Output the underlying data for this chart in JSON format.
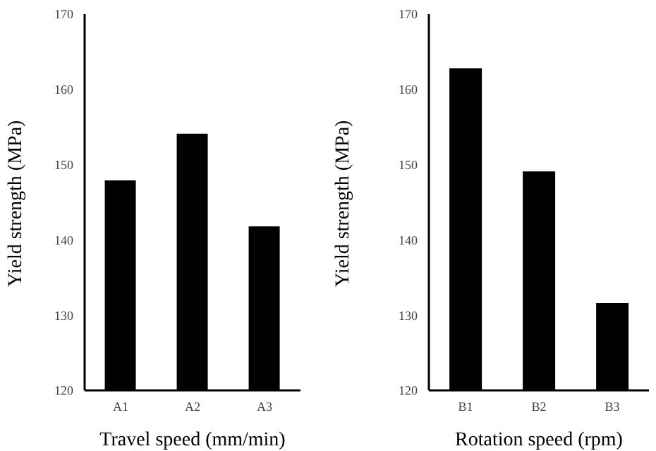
{
  "chart_data": [
    {
      "type": "bar",
      "xlabel": "Travel speed (mm/min)",
      "ylabel": "Yield strength (MPa)",
      "categories": [
        "A1",
        "A2",
        "A3"
      ],
      "values": [
        147.9,
        154.1,
        141.8
      ],
      "color": "#000000",
      "ylim": [
        120,
        170
      ],
      "yticks": [
        120,
        130,
        140,
        150,
        160,
        170
      ],
      "grid": false,
      "legend": false
    },
    {
      "type": "bar",
      "xlabel": "Rotation speed (rpm)",
      "ylabel": "Yield strength (MPa)",
      "categories": [
        "B1",
        "B2",
        "B3"
      ],
      "values": [
        162.8,
        149.1,
        131.6
      ],
      "color": "#000000",
      "ylim": [
        120,
        170
      ],
      "yticks": [
        120,
        130,
        140,
        150,
        160,
        170
      ],
      "grid": false,
      "legend": false
    }
  ]
}
